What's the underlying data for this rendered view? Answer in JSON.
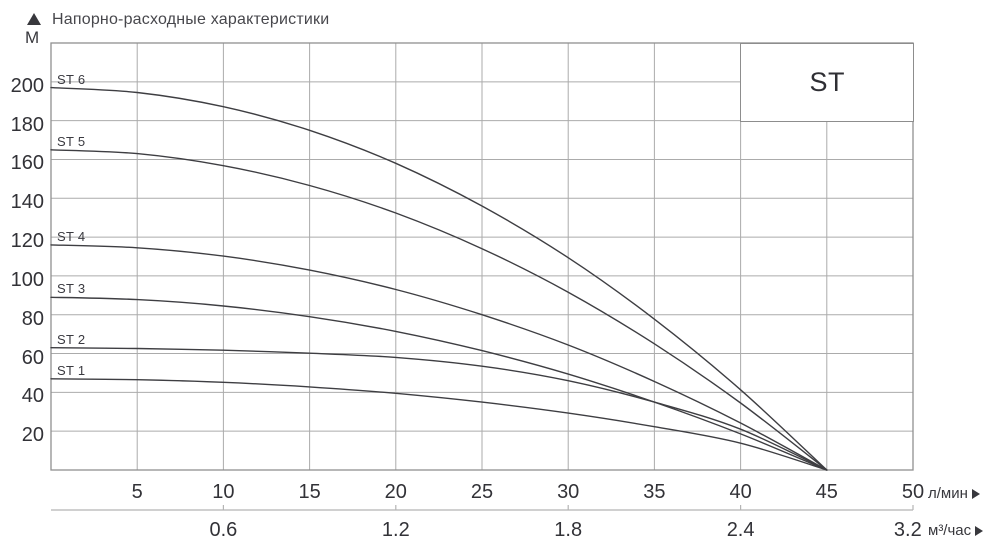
{
  "header": {
    "title": "Напорно-расходные характеристики",
    "y_unit": "М"
  },
  "box_label": "ST",
  "axes": {
    "x": {
      "unit": "л/мин",
      "min": 0,
      "max": 50,
      "ticks": [
        5,
        10,
        15,
        20,
        25,
        30,
        35,
        40,
        45,
        50
      ]
    },
    "y": {
      "unit": "М",
      "min": 0,
      "max": 220,
      "ticks": [
        20,
        40,
        60,
        80,
        100,
        120,
        140,
        160,
        180,
        200
      ]
    },
    "x2": {
      "unit": "м³/час",
      "labels": [
        {
          "text": "0.6",
          "at": 10
        },
        {
          "text": "1.2",
          "at": 20
        },
        {
          "text": "1.8",
          "at": 30
        },
        {
          "text": "2.4",
          "at": 40
        },
        {
          "text": "3.2",
          "at": 49.7
        }
      ],
      "tick_marks_at": [
        10,
        20,
        30,
        40,
        50
      ]
    }
  },
  "colors": {
    "grid": "#ababab",
    "border": "#909090",
    "curve": "#3e3e42",
    "axis2": "#b4b4b4",
    "text": "#323237"
  },
  "chart_data": {
    "type": "line",
    "title": "Напорно-расходные характеристики",
    "xlabel": "л/мин",
    "x2label": "м³/час",
    "ylabel": "М",
    "xlim": [
      0,
      50
    ],
    "ylim": [
      0,
      220
    ],
    "grid": true,
    "grid_step_x": 5,
    "grid_step_y": 20,
    "legend_box": "ST",
    "series": [
      {
        "name": "ST 1",
        "points": [
          [
            0,
            47
          ],
          [
            5,
            46.5
          ],
          [
            10,
            45.2
          ],
          [
            15,
            42.8
          ],
          [
            20,
            39.5
          ],
          [
            25,
            35
          ],
          [
            30,
            29.3
          ],
          [
            35,
            22.3
          ],
          [
            40,
            13.8
          ],
          [
            45,
            0
          ]
        ]
      },
      {
        "name": "ST 2",
        "points": [
          [
            0,
            63
          ],
          [
            5,
            62.6
          ],
          [
            10,
            61.7
          ],
          [
            15,
            60.2
          ],
          [
            20,
            58
          ],
          [
            25,
            53.5
          ],
          [
            30,
            46
          ],
          [
            35,
            35
          ],
          [
            40,
            21
          ],
          [
            45,
            0
          ]
        ]
      },
      {
        "name": "ST 3",
        "points": [
          [
            0,
            89
          ],
          [
            5,
            87.8
          ],
          [
            10,
            84.5
          ],
          [
            15,
            79
          ],
          [
            20,
            71.4
          ],
          [
            25,
            61.5
          ],
          [
            30,
            49.4
          ],
          [
            35,
            35
          ],
          [
            40,
            18.6
          ],
          [
            45,
            0
          ]
        ]
      },
      {
        "name": "ST 4",
        "points": [
          [
            0,
            116
          ],
          [
            5,
            114.5
          ],
          [
            10,
            110.2
          ],
          [
            15,
            103
          ],
          [
            20,
            93
          ],
          [
            25,
            80
          ],
          [
            30,
            64.4
          ],
          [
            35,
            45.6
          ],
          [
            40,
            24.2
          ],
          [
            45,
            0
          ]
        ]
      },
      {
        "name": "ST 5",
        "points": [
          [
            0,
            165
          ],
          [
            5,
            163
          ],
          [
            10,
            156.8
          ],
          [
            15,
            146.6
          ],
          [
            20,
            132.4
          ],
          [
            25,
            114
          ],
          [
            30,
            91.6
          ],
          [
            35,
            65
          ],
          [
            40,
            34.5
          ],
          [
            45,
            0
          ]
        ]
      },
      {
        "name": "ST 6",
        "points": [
          [
            0,
            197
          ],
          [
            5,
            194.5
          ],
          [
            10,
            187.2
          ],
          [
            15,
            175
          ],
          [
            20,
            158
          ],
          [
            25,
            136
          ],
          [
            30,
            109.4
          ],
          [
            35,
            77.7
          ],
          [
            40,
            41.3
          ],
          [
            45,
            0
          ]
        ]
      }
    ]
  }
}
